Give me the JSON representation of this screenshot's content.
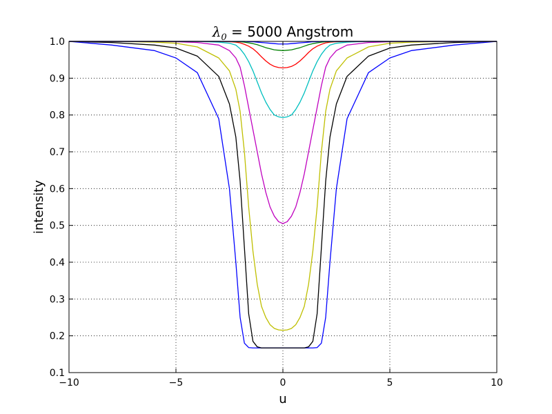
{
  "chart_data": {
    "type": "line",
    "title": {
      "symbol": "λ",
      "subscript": "0",
      "equals": " = ",
      "value": "5000 Angstrom"
    },
    "xlabel": "u",
    "ylabel": "intensity",
    "xlim": [
      -10,
      10
    ],
    "ylim": [
      0.1,
      1.0
    ],
    "xticks": [
      -10,
      -5,
      0,
      5,
      10
    ],
    "xtick_labels": [
      "−10",
      "−5",
      "0",
      "5",
      "10"
    ],
    "yticks": [
      0.1,
      0.2,
      0.3,
      0.4,
      0.5,
      0.6,
      0.7,
      0.8,
      0.9,
      1.0
    ],
    "ytick_labels": [
      "0.1",
      "0.2",
      "0.3",
      "0.4",
      "0.5",
      "0.6",
      "0.7",
      "0.8",
      "0.9",
      "1.0"
    ],
    "grid": true,
    "x": [
      -10,
      -8,
      -6,
      -5,
      -4,
      -3,
      -2.5,
      -2.2,
      -2.0,
      -1.8,
      -1.6,
      -1.4,
      -1.2,
      -1.0,
      -0.8,
      -0.6,
      -0.4,
      -0.2,
      0,
      0.2,
      0.4,
      0.6,
      0.8,
      1.0,
      1.2,
      1.4,
      1.6,
      1.8,
      2.0,
      2.2,
      2.5,
      3,
      4,
      5,
      6,
      8,
      10
    ],
    "series": [
      {
        "color": "#0000ff",
        "values": [
          1.0,
          0.99,
          0.975,
          0.955,
          0.915,
          0.79,
          0.6,
          0.4,
          0.25,
          0.18,
          0.168,
          0.167,
          0.167,
          0.167,
          0.167,
          0.167,
          0.167,
          0.167,
          0.167,
          0.167,
          0.167,
          0.167,
          0.167,
          0.167,
          0.167,
          0.167,
          0.168,
          0.18,
          0.25,
          0.4,
          0.6,
          0.79,
          0.915,
          0.955,
          0.975,
          0.99,
          1.0
        ]
      },
      {
        "color": "#000000",
        "values": [
          1.0,
          0.997,
          0.99,
          0.982,
          0.96,
          0.905,
          0.83,
          0.74,
          0.62,
          0.44,
          0.26,
          0.185,
          0.17,
          0.167,
          0.167,
          0.167,
          0.167,
          0.167,
          0.167,
          0.167,
          0.167,
          0.167,
          0.167,
          0.167,
          0.17,
          0.185,
          0.26,
          0.44,
          0.62,
          0.74,
          0.83,
          0.905,
          0.96,
          0.982,
          0.99,
          0.997,
          1.0
        ]
      },
      {
        "color": "#bfbf00",
        "values": [
          1.0,
          1.0,
          0.998,
          0.995,
          0.985,
          0.955,
          0.92,
          0.87,
          0.81,
          0.7,
          0.55,
          0.43,
          0.34,
          0.28,
          0.25,
          0.23,
          0.22,
          0.216,
          0.215,
          0.216,
          0.22,
          0.23,
          0.25,
          0.28,
          0.34,
          0.43,
          0.55,
          0.7,
          0.81,
          0.87,
          0.92,
          0.955,
          0.985,
          0.995,
          0.998,
          1.0,
          1.0
        ]
      },
      {
        "color": "#bf00bf",
        "values": [
          1.0,
          1.0,
          1.0,
          0.999,
          0.997,
          0.99,
          0.975,
          0.955,
          0.93,
          0.88,
          0.82,
          0.76,
          0.7,
          0.64,
          0.59,
          0.55,
          0.525,
          0.51,
          0.505,
          0.51,
          0.525,
          0.55,
          0.59,
          0.64,
          0.7,
          0.76,
          0.82,
          0.88,
          0.93,
          0.955,
          0.975,
          0.99,
          0.997,
          0.999,
          1.0,
          1.0,
          1.0
        ]
      },
      {
        "color": "#00bfbf",
        "values": [
          1.0,
          1.0,
          1.0,
          1.0,
          1.0,
          0.998,
          0.995,
          0.99,
          0.98,
          0.965,
          0.945,
          0.92,
          0.89,
          0.86,
          0.835,
          0.815,
          0.8,
          0.795,
          0.793,
          0.795,
          0.8,
          0.815,
          0.835,
          0.86,
          0.89,
          0.92,
          0.945,
          0.965,
          0.98,
          0.99,
          0.995,
          0.998,
          1.0,
          1.0,
          1.0,
          1.0,
          1.0
        ]
      },
      {
        "color": "#ff0000",
        "values": [
          1.0,
          1.0,
          1.0,
          1.0,
          1.0,
          1.0,
          0.999,
          0.998,
          0.996,
          0.992,
          0.987,
          0.98,
          0.97,
          0.958,
          0.947,
          0.938,
          0.932,
          0.929,
          0.928,
          0.929,
          0.932,
          0.938,
          0.947,
          0.958,
          0.97,
          0.98,
          0.987,
          0.992,
          0.996,
          0.998,
          0.999,
          1.0,
          1.0,
          1.0,
          1.0,
          1.0,
          1.0
        ]
      },
      {
        "color": "#008000",
        "values": [
          1.0,
          1.0,
          1.0,
          1.0,
          1.0,
          1.0,
          1.0,
          0.999,
          0.999,
          0.998,
          0.996,
          0.994,
          0.991,
          0.987,
          0.983,
          0.98,
          0.977,
          0.976,
          0.975,
          0.976,
          0.977,
          0.98,
          0.983,
          0.987,
          0.991,
          0.994,
          0.996,
          0.998,
          0.999,
          0.999,
          1.0,
          1.0,
          1.0,
          1.0,
          1.0,
          1.0,
          1.0
        ]
      },
      {
        "color": "#0000ff",
        "values": [
          1.0,
          1.0,
          1.0,
          1.0,
          1.0,
          1.0,
          1.0,
          1.0,
          1.0,
          1.0,
          0.999,
          0.999,
          0.998,
          0.997,
          0.996,
          0.995,
          0.994,
          0.993,
          0.993,
          0.993,
          0.994,
          0.995,
          0.996,
          0.997,
          0.998,
          0.999,
          0.999,
          1.0,
          1.0,
          1.0,
          1.0,
          1.0,
          1.0,
          1.0,
          1.0,
          1.0,
          1.0
        ]
      }
    ]
  }
}
